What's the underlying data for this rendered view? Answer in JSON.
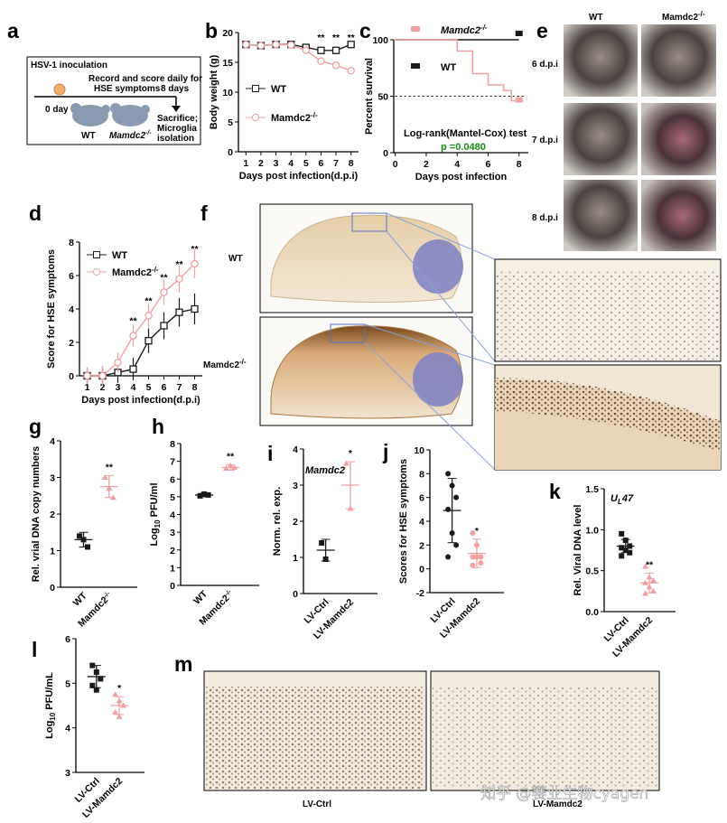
{
  "colors": {
    "wt": "#1a1a1a",
    "mut": "#f0a0a0",
    "green": "#1a8a1a",
    "photo": "#5a5a5a"
  },
  "labels": {
    "a": "a",
    "b": "b",
    "c": "c",
    "d": "d",
    "e": "e",
    "f": "f",
    "g": "g",
    "h": "h",
    "i": "i",
    "j": "j",
    "k": "k",
    "l": "l",
    "m": "m"
  },
  "panel_a": {
    "inoculation": "HSV-1 inoculation",
    "record": "Record and score daily for",
    "hse": "HSE symptoms",
    "days8": "8 days",
    "day0": "0 day",
    "wt": "WT",
    "mut": "Mamdc2",
    "sup": "-/-",
    "sacrifice": "Sacrifice;",
    "microglia": "Microglia",
    "isolation": "isolation"
  },
  "panel_e": {
    "wt": "WT",
    "mut": "Mamdc2",
    "sup": "-/-",
    "rows": [
      "6 d.p.i",
      "7 d.p.i",
      "8 d.p.i"
    ]
  },
  "panel_f": {
    "wt": "WT",
    "mut": "Mamdc2",
    "sup": "-/-"
  },
  "panel_m": {
    "left": "LV-Ctrl",
    "right": "LV-Mamdc2"
  },
  "watermark": "知乎 @赛业生物cyagen",
  "chart_data": [
    {
      "id": "b",
      "type": "line",
      "xlabel": "Days post infection(d.p.i)",
      "ylabel": "Body weight (g)",
      "ylim": [
        0,
        20
      ],
      "yticks": [
        0,
        5,
        10,
        15,
        20
      ],
      "x": [
        1,
        2,
        3,
        4,
        5,
        6,
        7,
        8
      ],
      "series": [
        {
          "name": "WT",
          "values": [
            18,
            17.8,
            18,
            18,
            17.5,
            17,
            17,
            18
          ]
        },
        {
          "name": "Mamdc2",
          "sup": "-/-",
          "values": [
            18,
            17.8,
            18,
            17.9,
            17,
            15.2,
            14.5,
            13.6
          ]
        }
      ],
      "sig": [
        {
          "x": 6,
          "t": "**"
        },
        {
          "x": 7,
          "t": "**"
        },
        {
          "x": 8,
          "t": "**"
        }
      ]
    },
    {
      "id": "c",
      "type": "line",
      "xlabel": "Days post infection",
      "ylabel": "Percent survival",
      "ylim": [
        0,
        100
      ],
      "yticks": [
        0,
        50,
        100
      ],
      "xticks": [
        0,
        2,
        4,
        6,
        8
      ],
      "series": [
        {
          "name": "WT",
          "values": [
            [
              0,
              100
            ],
            [
              8,
              100
            ]
          ]
        },
        {
          "name": "Mamdc2",
          "sup": "-/-",
          "values": [
            [
              0,
              100
            ],
            [
              4,
              100
            ],
            [
              4,
              90
            ],
            [
              5,
              90
            ],
            [
              5,
              70
            ],
            [
              6,
              70
            ],
            [
              6,
              60
            ],
            [
              7,
              60
            ],
            [
              7,
              55
            ],
            [
              7.5,
              55
            ],
            [
              7.5,
              46
            ],
            [
              8,
              46
            ]
          ]
        }
      ],
      "test": "Log-rank(Mantel-Cox) test",
      "p": "p =0.0480"
    },
    {
      "id": "d",
      "type": "line",
      "xlabel": "Days post infection(d.p.i)",
      "ylabel": "Score for HSE symptoms",
      "ylim": [
        0,
        8
      ],
      "yticks": [
        0,
        2,
        4,
        6,
        8
      ],
      "x": [
        1,
        2,
        3,
        4,
        5,
        6,
        7,
        8
      ],
      "series": [
        {
          "name": "WT",
          "values": [
            0,
            0,
            0.2,
            0.4,
            2.1,
            3.0,
            3.8,
            4.0
          ]
        },
        {
          "name": "Mamdc2",
          "sup": "-/-",
          "values": [
            0,
            0,
            0.8,
            2.4,
            3.6,
            5.0,
            5.8,
            6.7
          ]
        }
      ],
      "sig": [
        {
          "x": 4,
          "t": "**"
        },
        {
          "x": 5,
          "t": "**"
        },
        {
          "x": 6,
          "t": "**"
        },
        {
          "x": 7,
          "t": "**"
        },
        {
          "x": 8,
          "t": "**"
        }
      ]
    },
    {
      "id": "g",
      "type": "scatter",
      "ylabel": "Rel. vrial DNA copy numbers",
      "ylim": [
        0,
        4
      ],
      "yticks": [
        0,
        1,
        2,
        3,
        4
      ],
      "categories": [
        "WT",
        "Mamdc2"
      ],
      "cat_sup": [
        "",
        "-/-"
      ],
      "groups": [
        {
          "mean": 1.3,
          "sd": 0.2,
          "points": [
            1.4,
            1.3,
            1.1
          ]
        },
        {
          "mean": 2.75,
          "sd": 0.3,
          "points": [
            3.0,
            2.7,
            2.45
          ]
        }
      ],
      "sig": "**"
    },
    {
      "id": "h",
      "type": "scatter",
      "ylabel": "Log10 PFU/ml",
      "ylim": [
        0,
        8
      ],
      "yticks": [
        0,
        1,
        2,
        3,
        4,
        5,
        6,
        7,
        8
      ],
      "categories": [
        "WT",
        "Mamdc2"
      ],
      "cat_sup": [
        "",
        "-/-"
      ],
      "groups": [
        {
          "mean": 5.1,
          "sd": 0.1,
          "points": [
            5.05,
            5.15,
            5.1
          ]
        },
        {
          "mean": 6.65,
          "sd": 0.15,
          "points": [
            6.6,
            6.75,
            6.65
          ]
        }
      ],
      "sig": "**"
    },
    {
      "id": "i",
      "type": "scatter",
      "ylabel": "Norm. rel. exp.",
      "title": "Mamdc2",
      "ylim": [
        0,
        4
      ],
      "yticks": [
        0,
        1,
        2,
        3,
        4
      ],
      "categories": [
        "LV-Ctrl",
        "LV-Mamdc2"
      ],
      "groups": [
        {
          "mean": 1.2,
          "sd": 0.3,
          "points": [
            1.4,
            0.95
          ]
        },
        {
          "mean": 3.0,
          "sd": 0.65,
          "points": [
            3.6,
            2.35
          ]
        }
      ],
      "sig": "*"
    },
    {
      "id": "j",
      "type": "scatter",
      "ylabel": "Scores for HSE symptoms",
      "ylim": [
        -2,
        10
      ],
      "yticks": [
        -2,
        0,
        2,
        4,
        6,
        8,
        10
      ],
      "categories": [
        "LV-Ctrl",
        "LV-Mamdc2"
      ],
      "groups": [
        {
          "mean": 4.9,
          "sd": 2.7,
          "points": [
            8,
            7,
            6,
            5,
            3,
            2,
            1
          ]
        },
        {
          "mean": 1.3,
          "sd": 1.2,
          "points": [
            3,
            2,
            1,
            1,
            1,
            0.5,
            0.3
          ]
        }
      ],
      "sig": "*"
    },
    {
      "id": "k",
      "type": "scatter",
      "ylabel": "Rel. Viral DNA level",
      "title": "UL47",
      "ylim": [
        0,
        1.5
      ],
      "yticks": [
        0.0,
        0.5,
        1.0,
        1.5
      ],
      "categories": [
        "LV-Ctrl",
        "LV-Mamdc2"
      ],
      "groups": [
        {
          "mean": 0.8,
          "sd": 0.08,
          "points": [
            0.95,
            0.87,
            0.8,
            0.78,
            0.75,
            0.72,
            0.68
          ]
        },
        {
          "mean": 0.35,
          "sd": 0.12,
          "points": [
            0.55,
            0.42,
            0.38,
            0.35,
            0.3,
            0.25,
            0.22
          ]
        }
      ],
      "sig": "**"
    },
    {
      "id": "l",
      "type": "scatter",
      "ylabel": "Log10 PFU/mL",
      "ylim": [
        3,
        6
      ],
      "yticks": [
        3,
        4,
        5,
        6
      ],
      "categories": [
        "LV-Ctrl",
        "LV-Mamdc2"
      ],
      "groups": [
        {
          "mean": 5.15,
          "sd": 0.25,
          "points": [
            5.4,
            5.25,
            5.1,
            4.95,
            4.85
          ]
        },
        {
          "mean": 4.5,
          "sd": 0.2,
          "points": [
            4.75,
            4.6,
            4.5,
            4.35,
            4.25
          ]
        }
      ],
      "sig": "*"
    }
  ]
}
